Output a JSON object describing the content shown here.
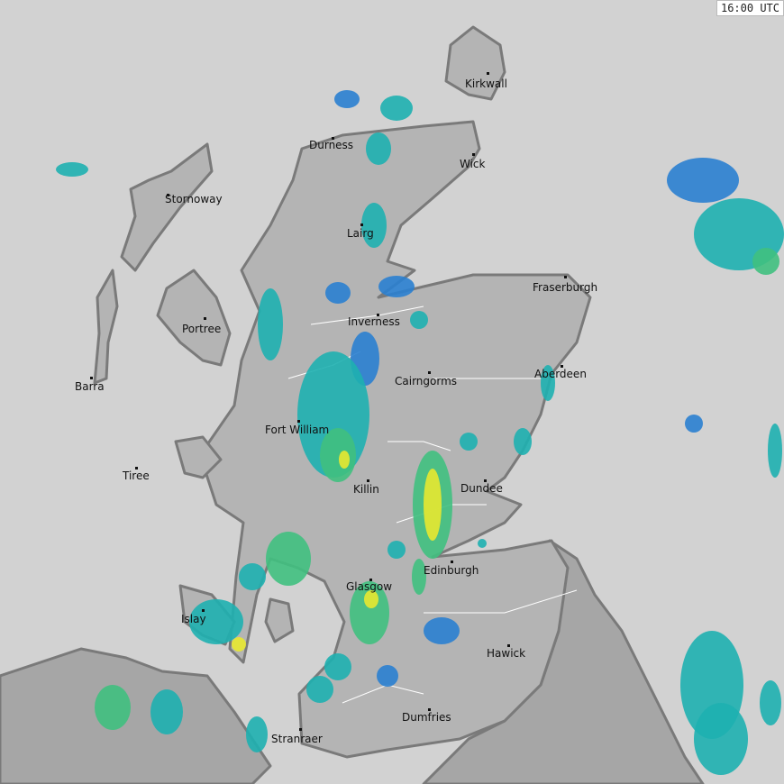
{
  "timestamp": "16:00 UTC",
  "colors": {
    "sea": "#d2d2d2",
    "land": "#b4b4b4",
    "land_england": "#a6a6a6",
    "coast": "#7a7a7a",
    "rain_light": "#2a7fd0",
    "rain_moderate": "#1eb0b0",
    "rain_heavy": "#40c080",
    "rain_very_heavy": "#e8e830"
  },
  "towns": [
    "Kirkwall",
    "Durness",
    "Wick",
    "Stornoway",
    "Lairg",
    "Fraserburgh",
    "Portree",
    "Inverness",
    "Aberdeen",
    "Barra",
    "Cairngorms",
    "Fort William",
    "Tiree",
    "Killin",
    "Dundee",
    "Edinburgh",
    "Glasgow",
    "Islay",
    "Hawick",
    "Dumfries",
    "Stranraer"
  ]
}
